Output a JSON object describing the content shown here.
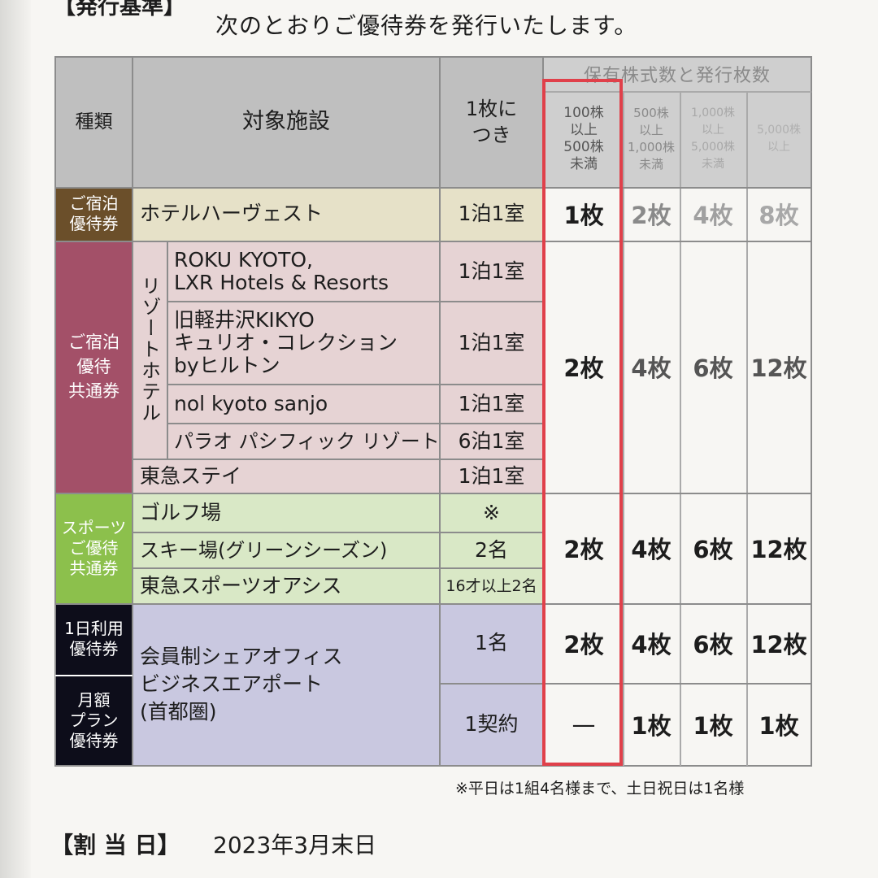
{
  "header": {
    "section_label": "【発行基準】",
    "intro_text": "次のとおりご優待券を発行いたします。"
  },
  "table": {
    "col_headers": {
      "type": "種類",
      "facility": "対象施設",
      "per_ticket": "1枚に\nつき",
      "holding_group": "保有株式数と発行枚数",
      "tiers": [
        "100株\n以上\n500株\n未満",
        "500株\n以上\n1,000株\n未満",
        "1,000株\n以上\n5,000株\n未満",
        "5,000株\n以上"
      ]
    },
    "categories": {
      "stay": "ご宿泊\n優待券",
      "stay_common": "ご宿泊\n優待\n共通券",
      "sports": "スポーツ\nご優待\n共通券",
      "day_use": "1日利用\n優待券",
      "monthly": "月額\nプラン\n優待券"
    },
    "resort_label": "リゾートホテル",
    "rows": {
      "harvest": {
        "facility": "ホテルハーヴェスト",
        "unit": "1泊1室"
      },
      "roku": {
        "facility": "ROKU KYOTO,\nLXR Hotels & Resorts",
        "unit": "1泊1室"
      },
      "kikyo": {
        "facility": "旧軽井沢KIKYO\nキュリオ・コレクション\nbyヒルトン",
        "unit": "1泊1室"
      },
      "nol": {
        "facility": "nol kyoto sanjo",
        "unit": "1泊1室"
      },
      "palau": {
        "facility": "パラオ パシフィック リゾート",
        "unit": "6泊1室"
      },
      "tokyustay": {
        "facility": "東急ステイ",
        "unit": "1泊1室"
      },
      "golf": {
        "facility": "ゴルフ場",
        "unit": "※"
      },
      "ski": {
        "facility": "スキー場(グリーンシーズン)",
        "unit": "2名"
      },
      "oasis": {
        "facility": "東急スポーツオアシス",
        "unit": "16才以上2名"
      },
      "office": {
        "facility": "会員制シェアオフィス\nビジネスエアポート\n(首都圏)"
      },
      "office_day_unit": "1名",
      "office_month_unit": "1契約"
    },
    "counts": {
      "stay": [
        "1枚",
        "2枚",
        "4枚",
        "8枚"
      ],
      "stay_common": [
        "2枚",
        "4枚",
        "6枚",
        "12枚"
      ],
      "sports": [
        "2枚",
        "4枚",
        "6枚",
        "12枚"
      ],
      "day_use": [
        "2枚",
        "4枚",
        "6枚",
        "12枚"
      ],
      "monthly": [
        "—",
        "1枚",
        "1枚",
        "1枚"
      ]
    }
  },
  "footnote": "※平日は1組4名様まで、土日祝日は1名様",
  "allotment": {
    "label": "【割 当 日】",
    "date": "2023年3月末日"
  },
  "colors": {
    "header_bg": "#bdbdbd",
    "stay_cat": "#6b4f2a",
    "stay_common_cat": "#a35068",
    "sports_cat": "#8cc04c",
    "office_cat": "#0d0d1a",
    "stay_row": "#e6e1c8",
    "common_row": "#e6d3d4",
    "sports_row": "#d9e8c6",
    "office_row": "#c9c8e0",
    "highlight": "#e0404a"
  }
}
